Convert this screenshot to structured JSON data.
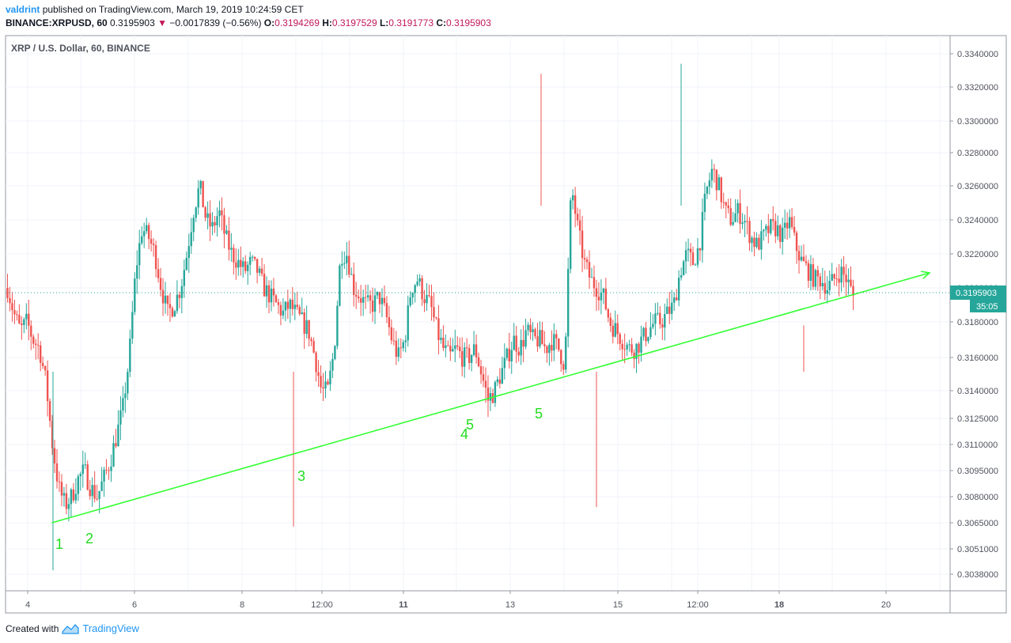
{
  "header": {
    "author": "valdrint",
    "published_text": "published on TradingView.com, March 19, 2019 10:24:59 CET",
    "symbol": "BINANCE:XRPUSD, 60",
    "last_price": "0.3195903",
    "change": "−0.0017839 (−0.56%)",
    "open_label": "O:",
    "open": "0.3194269",
    "high_label": "H:",
    "high": "0.3197529",
    "low_label": "L:",
    "low": "0.3191773",
    "close_label": "C:",
    "close": "0.3195903"
  },
  "footer": {
    "created_with": "Created with",
    "brand": "TradingView"
  },
  "colors": {
    "up": "#26a69a",
    "down": "#ef5350",
    "trend": "#33ff33",
    "annotation": "#22dd22",
    "price_tag": "#26a69a"
  },
  "chart_data": {
    "type": "candlestick",
    "title": "XRP / U.S. Dollar, 60, BINANCE",
    "y_ticks": [
      "0.3340000",
      "0.3320000",
      "0.3300000",
      "0.3280000",
      "0.3260000",
      "0.3240000",
      "0.3220000",
      "0.3200000",
      "0.3180000",
      "0.3160000",
      "0.3140000",
      "0.3125000",
      "0.3110000",
      "0.3095000",
      "0.3080000",
      "0.3065000",
      "0.3051000",
      "0.3038000"
    ],
    "x_ticks": [
      {
        "label": "4",
        "bold": false
      },
      {
        "label": "6",
        "bold": false
      },
      {
        "label": "8",
        "bold": false
      },
      {
        "label": "12:00",
        "bold": false
      },
      {
        "label": "11",
        "bold": true
      },
      {
        "label": "13",
        "bold": false
      },
      {
        "label": "15",
        "bold": false
      },
      {
        "label": "12:00",
        "bold": false
      },
      {
        "label": "18",
        "bold": true
      },
      {
        "label": "20",
        "bold": false
      }
    ],
    "last_price_tag": "0.3195903",
    "countdown_tag": "35:05",
    "price_path": [
      0.32,
      0.3185,
      0.3175,
      0.318,
      0.317,
      0.3165,
      0.3145,
      0.311,
      0.3085,
      0.3075,
      0.308,
      0.309,
      0.3095,
      0.3085,
      0.308,
      0.309,
      0.31,
      0.3115,
      0.313,
      0.316,
      0.321,
      0.3235,
      0.323,
      0.322,
      0.32,
      0.3185,
      0.319,
      0.32,
      0.322,
      0.3245,
      0.326,
      0.324,
      0.3235,
      0.3245,
      0.323,
      0.322,
      0.3215,
      0.321,
      0.3215,
      0.321,
      0.32,
      0.3195,
      0.319,
      0.3185,
      0.319,
      0.3185,
      0.318,
      0.3175,
      0.316,
      0.314,
      0.314,
      0.3165,
      0.322,
      0.322,
      0.32,
      0.3195,
      0.319,
      0.319,
      0.3195,
      0.3185,
      0.317,
      0.316,
      0.317,
      0.32,
      0.3205,
      0.3195,
      0.319,
      0.3175,
      0.3165,
      0.316,
      0.3165,
      0.316,
      0.316,
      0.3165,
      0.315,
      0.3135,
      0.314,
      0.315,
      0.316,
      0.317,
      0.3165,
      0.3175,
      0.317,
      0.317,
      0.3165,
      0.317,
      0.3165,
      0.3155,
      0.326,
      0.3235,
      0.3215,
      0.3205,
      0.32,
      0.3195,
      0.318,
      0.3175,
      0.317,
      0.3165,
      0.3165,
      0.317,
      0.3175,
      0.318,
      0.318,
      0.3185,
      0.319,
      0.321,
      0.322,
      0.3215,
      0.3225,
      0.3255,
      0.327,
      0.326,
      0.3245,
      0.324,
      0.3245,
      0.324,
      0.323,
      0.3225,
      0.323,
      0.3235,
      0.3235,
      0.323,
      0.324,
      0.3225,
      0.3215,
      0.321,
      0.3205,
      0.3205,
      0.32,
      0.3205,
      0.321,
      0.3205,
      0.3195
    ],
    "trendline": {
      "from_day": 4.45,
      "from_price": 0.3065,
      "to_day": 20.85,
      "to_price": 0.3207
    },
    "annotations": [
      {
        "text": "1",
        "day": 4.55,
        "price": 0.3049
      },
      {
        "text": "2",
        "day": 5.2,
        "price": 0.3055
      },
      {
        "text": "3",
        "day": 9.55,
        "price": 0.3092
      },
      {
        "text": "4",
        "day": 12.2,
        "price": 0.3114
      },
      {
        "text": "5",
        "day": 12.3,
        "price": 0.312
      },
      {
        "text": "5",
        "day": 13.55,
        "price": 0.3124
      }
    ],
    "last_price": 0.3195903,
    "grid": true
  }
}
